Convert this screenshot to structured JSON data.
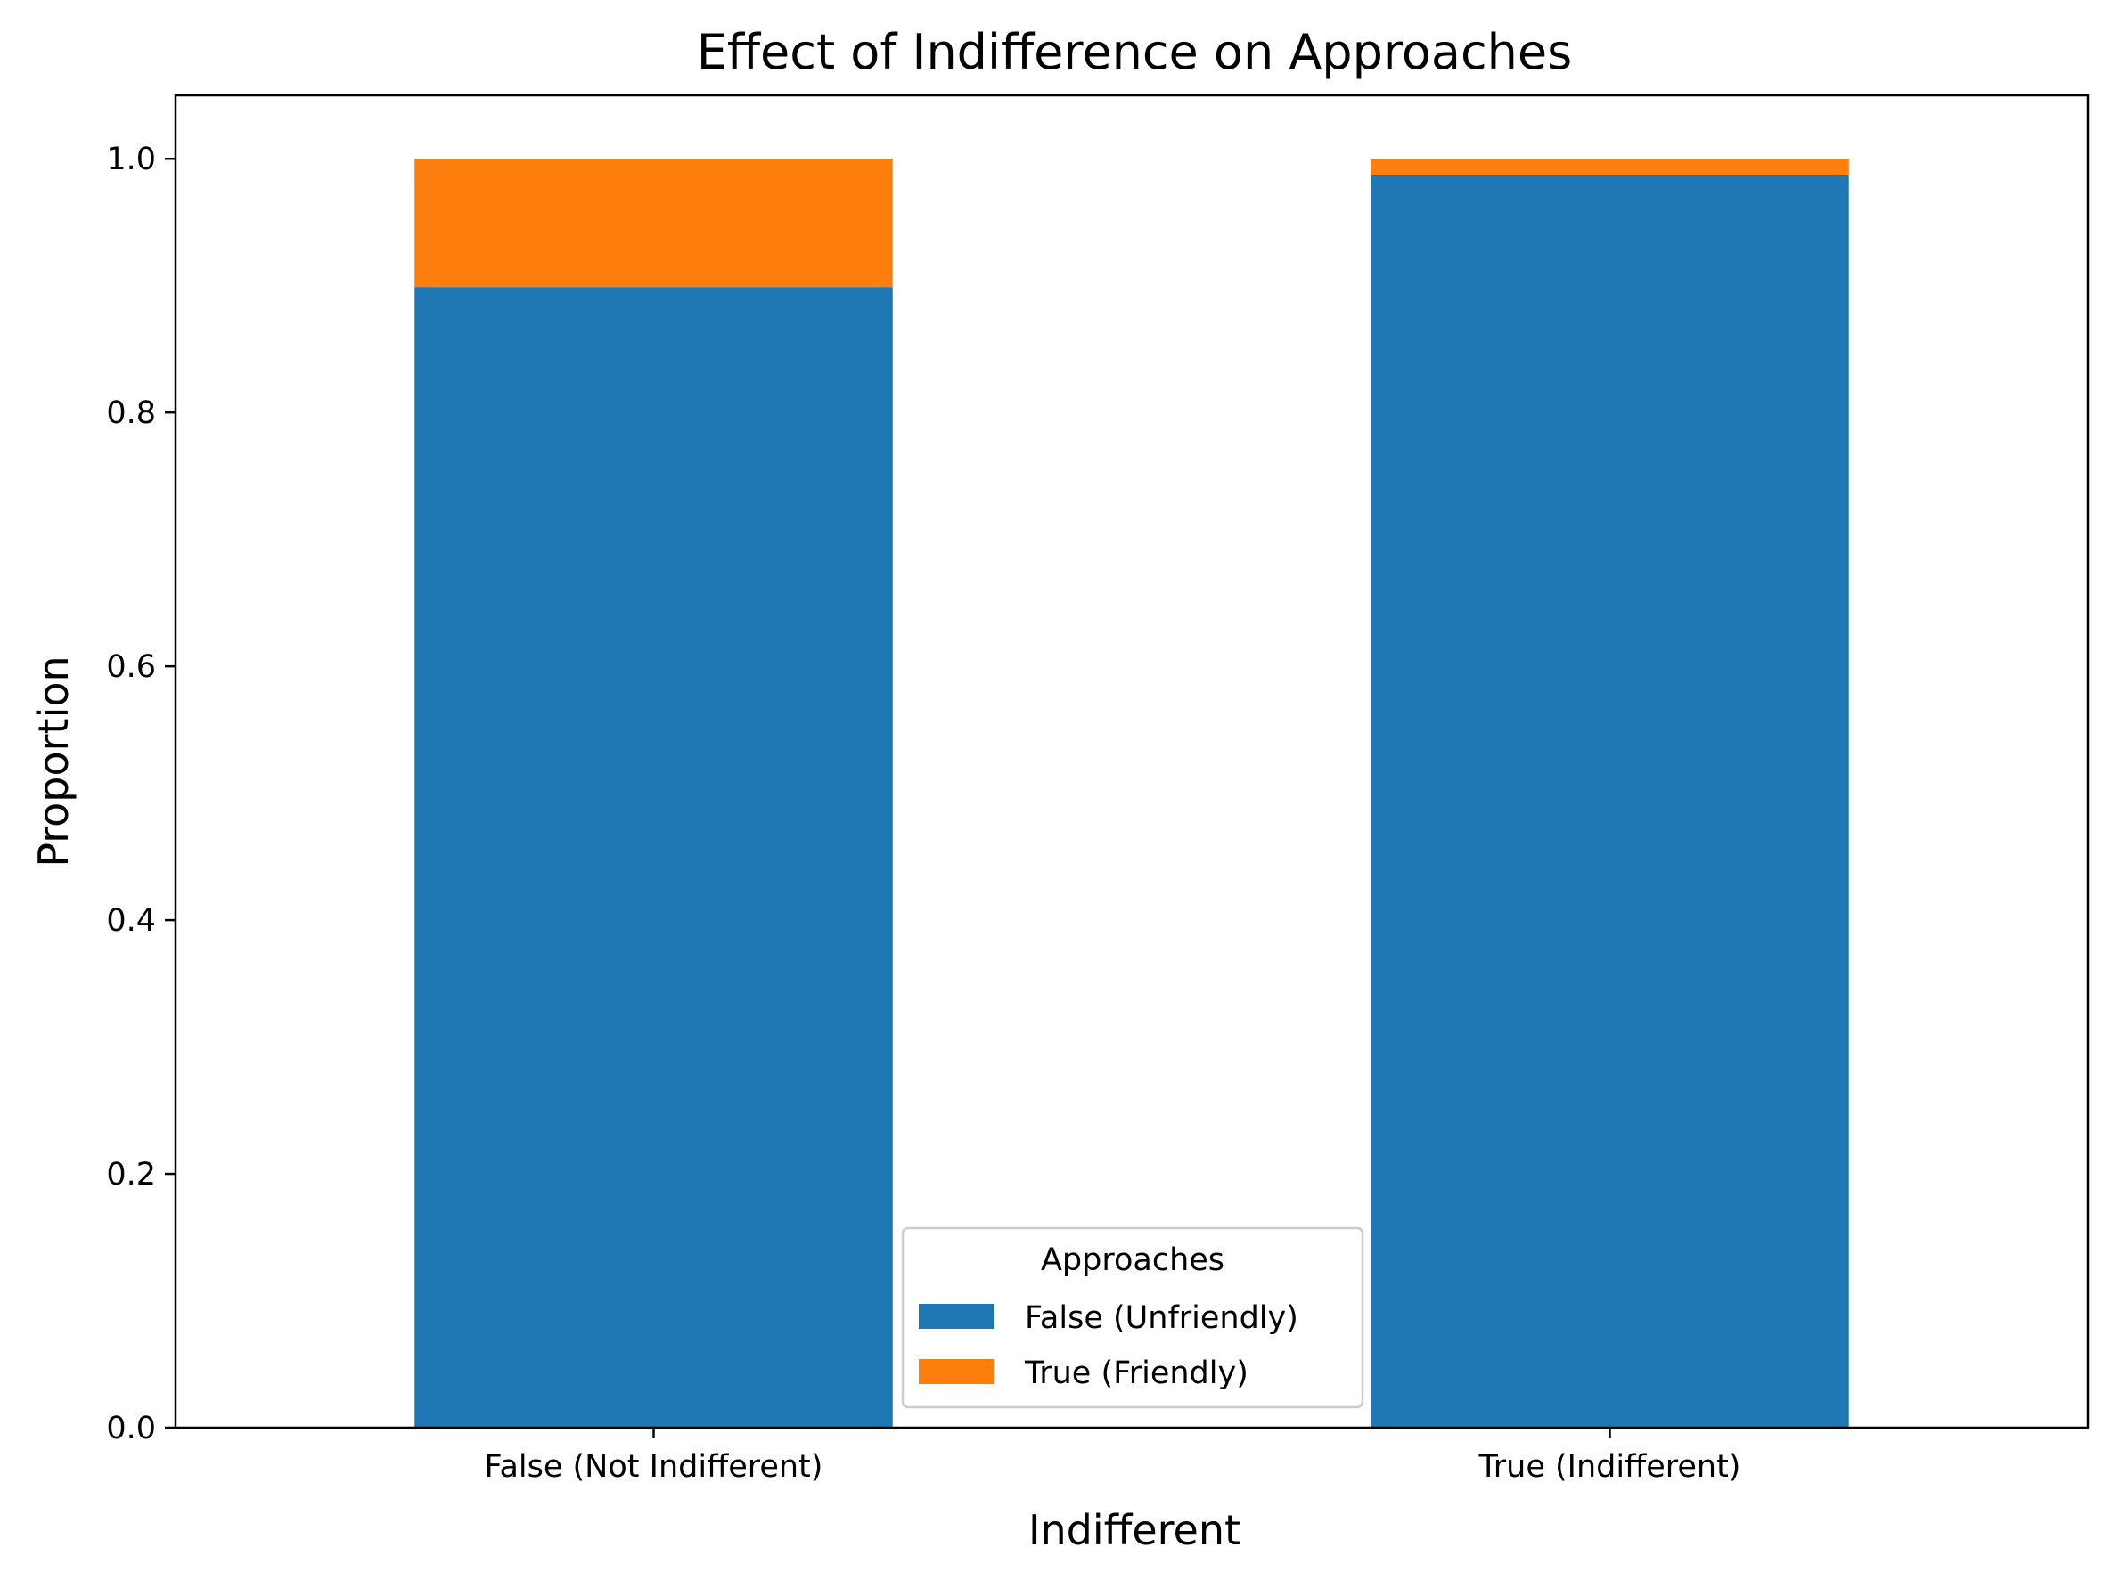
{
  "chart_data": {
    "type": "bar",
    "stacked": true,
    "title": "Effect of Indifference on Approaches",
    "xlabel": "Indifferent",
    "ylabel": "Proportion",
    "categories": [
      "False (Not Indifferent)",
      "True (Indifferent)"
    ],
    "series": [
      {
        "name": "False (Unfriendly)",
        "values": [
          0.899,
          0.987
        ],
        "color": "#1f77b4"
      },
      {
        "name": "True (Friendly)",
        "values": [
          0.101,
          0.013
        ],
        "color": "#ff7f0e"
      }
    ],
    "ylim": [
      0,
      1.05
    ],
    "yticks": [
      0.0,
      0.2,
      0.4,
      0.6,
      0.8,
      1.0
    ],
    "ytick_labels": [
      "0.0",
      "0.2",
      "0.4",
      "0.6",
      "0.8",
      "1.0"
    ],
    "grid": false,
    "legend": {
      "title": "Approaches",
      "placement": "lower-center"
    }
  }
}
